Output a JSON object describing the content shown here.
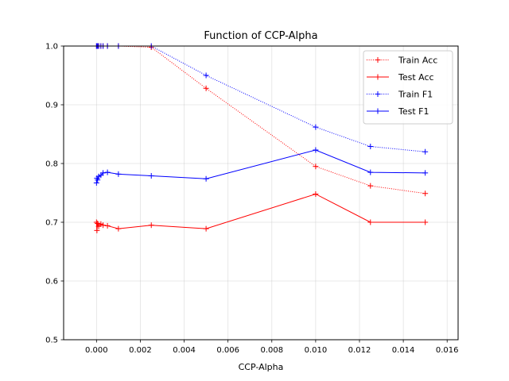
{
  "chart_data": {
    "type": "line",
    "title": "Function of CCP-Alpha",
    "xlabel": "CCP-Alpha",
    "ylabel": "",
    "xlim": [
      -0.0015,
      0.0165
    ],
    "ylim": [
      0.5,
      1.0
    ],
    "x_ticks": [
      0.0,
      0.002,
      0.004,
      0.006,
      0.008,
      0.01,
      0.012,
      0.014,
      0.016
    ],
    "x_tick_labels": [
      "0.000",
      "0.002",
      "0.004",
      "0.006",
      "0.008",
      "0.010",
      "0.012",
      "0.014",
      "0.016"
    ],
    "y_ticks": [
      0.5,
      0.6,
      0.7,
      0.8,
      0.9,
      1.0
    ],
    "y_tick_labels": [
      "0.5",
      "0.6",
      "0.7",
      "0.8",
      "0.9",
      "1.0"
    ],
    "grid": true,
    "legend_position": "top-right",
    "series": [
      {
        "name": "Train Acc",
        "color": "#ff0000",
        "dash": "dotted",
        "marker": "plus",
        "x": [
          0.0,
          2e-05,
          5e-05,
          0.0001,
          0.0002,
          0.0003,
          0.0005,
          0.001,
          0.0025,
          0.005,
          0.01,
          0.0125,
          0.015
        ],
        "y": [
          1.0,
          1.0,
          1.0,
          1.0,
          1.0,
          1.0,
          1.0,
          1.0,
          0.998,
          0.928,
          0.795,
          0.762,
          0.749
        ]
      },
      {
        "name": "Test Acc",
        "color": "#ff0000",
        "dash": "solid",
        "marker": "plus",
        "x": [
          0.0,
          2e-05,
          5e-05,
          0.0001,
          0.0002,
          0.0003,
          0.0005,
          0.001,
          0.0025,
          0.005,
          0.01,
          0.0125,
          0.015
        ],
        "y": [
          0.7,
          0.686,
          0.698,
          0.693,
          0.697,
          0.695,
          0.694,
          0.689,
          0.695,
          0.689,
          0.748,
          0.7,
          0.7
        ]
      },
      {
        "name": "Train F1",
        "color": "#0000ff",
        "dash": "dotted",
        "marker": "plus",
        "x": [
          0.0,
          2e-05,
          5e-05,
          0.0001,
          0.0002,
          0.0003,
          0.0005,
          0.001,
          0.0025,
          0.005,
          0.01,
          0.0125,
          0.015
        ],
        "y": [
          1.0,
          1.0,
          1.0,
          1.0,
          1.0,
          1.0,
          1.0,
          1.0,
          1.0,
          0.95,
          0.862,
          0.829,
          0.82
        ]
      },
      {
        "name": "Test F1",
        "color": "#0000ff",
        "dash": "solid",
        "marker": "plus",
        "x": [
          0.0,
          2e-05,
          5e-05,
          0.0001,
          0.0002,
          0.0003,
          0.0005,
          0.001,
          0.0025,
          0.005,
          0.01,
          0.0125,
          0.015
        ],
        "y": [
          0.767,
          0.775,
          0.772,
          0.778,
          0.78,
          0.784,
          0.785,
          0.782,
          0.779,
          0.774,
          0.823,
          0.785,
          0.784
        ]
      }
    ]
  }
}
